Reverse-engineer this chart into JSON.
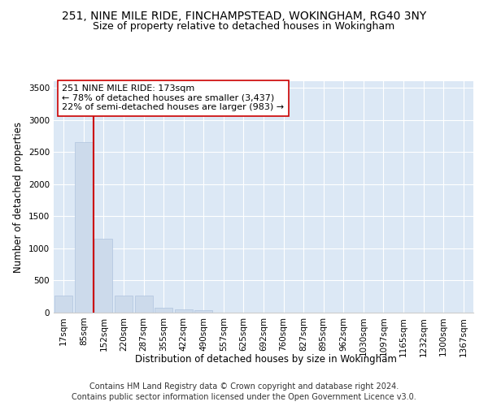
{
  "title_line1": "251, NINE MILE RIDE, FINCHAMPSTEAD, WOKINGHAM, RG40 3NY",
  "title_line2": "Size of property relative to detached houses in Wokingham",
  "xlabel": "Distribution of detached houses by size in Wokingham",
  "ylabel": "Number of detached properties",
  "bar_color": "#ccdaeb",
  "bar_edge_color": "#b0c4de",
  "vline_color": "#cc0000",
  "annotation_text": "251 NINE MILE RIDE: 173sqm\n← 78% of detached houses are smaller (3,437)\n22% of semi-detached houses are larger (983) →",
  "categories": [
    "17sqm",
    "85sqm",
    "152sqm",
    "220sqm",
    "287sqm",
    "355sqm",
    "422sqm",
    "490sqm",
    "557sqm",
    "625sqm",
    "692sqm",
    "760sqm",
    "827sqm",
    "895sqm",
    "962sqm",
    "1030sqm",
    "1097sqm",
    "1165sqm",
    "1232sqm",
    "1300sqm",
    "1367sqm"
  ],
  "values": [
    270,
    2650,
    1150,
    270,
    270,
    80,
    50,
    35,
    0,
    0,
    0,
    0,
    0,
    0,
    0,
    0,
    0,
    0,
    0,
    0,
    0
  ],
  "ylim": [
    0,
    3600
  ],
  "yticks": [
    0,
    500,
    1000,
    1500,
    2000,
    2500,
    3000,
    3500
  ],
  "background_color": "#dce8f5",
  "footer_line1": "Contains HM Land Registry data © Crown copyright and database right 2024.",
  "footer_line2": "Contains public sector information licensed under the Open Government Licence v3.0.",
  "title_fontsize": 10,
  "subtitle_fontsize": 9,
  "axis_label_fontsize": 8.5,
  "tick_fontsize": 7.5,
  "footer_fontsize": 7,
  "annotation_fontsize": 8
}
